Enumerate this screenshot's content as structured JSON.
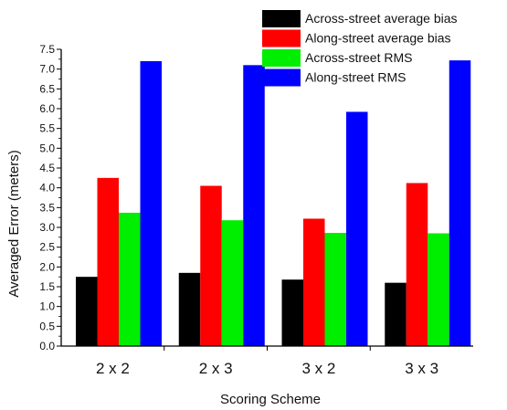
{
  "chart_data": {
    "type": "bar",
    "title": "",
    "xlabel": "Scoring Scheme",
    "ylabel": "Averaged Error (meters)",
    "categories": [
      "2 x 2",
      "2 x 3",
      "3 x 2",
      "3 x 3"
    ],
    "ylim": [
      0,
      7.5
    ],
    "yticks": [
      "0.0",
      "0.5",
      "1.0",
      "1.5",
      "2.0",
      "2.5",
      "3.0",
      "3.5",
      "4.0",
      "4.5",
      "5.0",
      "5.5",
      "6.0",
      "6.5",
      "7.0",
      "7.5"
    ],
    "grid": false,
    "legend_position": "top-right",
    "series": [
      {
        "name": "Across-street average bias",
        "color": "#000000",
        "values": [
          1.75,
          1.85,
          1.68,
          1.6
        ]
      },
      {
        "name": "Along-street average bias",
        "color": "#ff0000",
        "values": [
          4.25,
          4.05,
          3.22,
          4.12
        ]
      },
      {
        "name": "Across-street RMS",
        "color": "#00ee00",
        "values": [
          3.37,
          3.18,
          2.86,
          2.85
        ]
      },
      {
        "name": "Along-street RMS",
        "color": "#0000ff",
        "values": [
          7.2,
          7.1,
          5.92,
          7.22
        ]
      }
    ]
  }
}
